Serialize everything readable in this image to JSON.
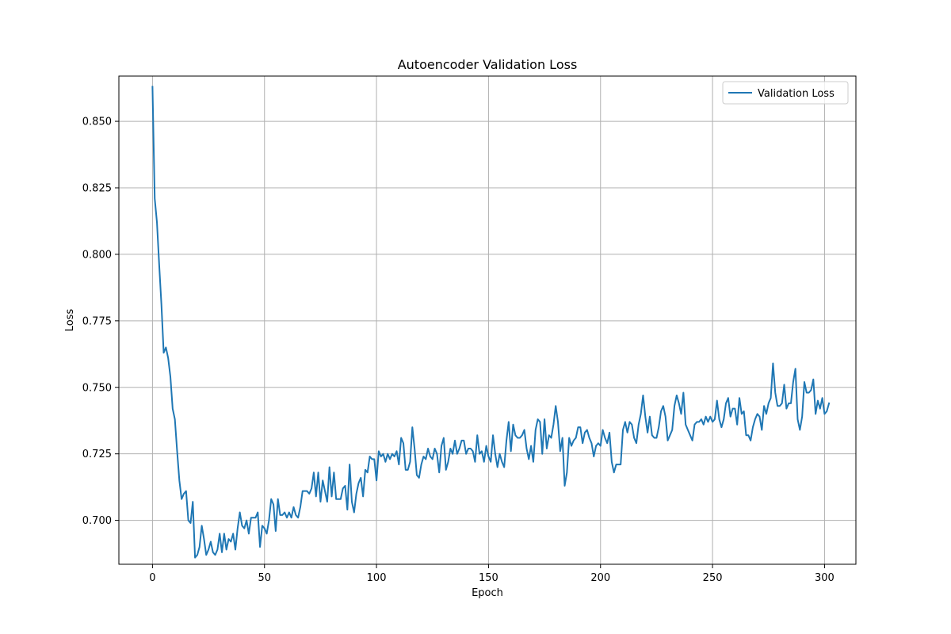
{
  "chart_data": {
    "type": "line",
    "title": "Autoencoder Validation Loss",
    "xlabel": "Epoch",
    "ylabel": "Loss",
    "xlim": [
      -15,
      314
    ],
    "ylim": [
      0.6835,
      0.867
    ],
    "x_ticks": [
      0,
      50,
      100,
      150,
      200,
      250,
      300
    ],
    "y_ticks": [
      0.7,
      0.725,
      0.75,
      0.775,
      0.8,
      0.825,
      0.85
    ],
    "y_tick_labels": [
      "0.700",
      "0.725",
      "0.750",
      "0.775",
      "0.800",
      "0.825",
      "0.850"
    ],
    "grid": true,
    "legend_position": "top-right",
    "series": [
      {
        "name": "Validation Loss",
        "color": "#1f77b4",
        "x_start": 0,
        "x_step": 1,
        "values": [
          0.863,
          0.821,
          0.812,
          0.796,
          0.781,
          0.763,
          0.765,
          0.761,
          0.754,
          0.742,
          0.738,
          0.726,
          0.715,
          0.708,
          0.71,
          0.711,
          0.7,
          0.699,
          0.707,
          0.686,
          0.687,
          0.69,
          0.698,
          0.693,
          0.687,
          0.689,
          0.692,
          0.688,
          0.687,
          0.689,
          0.695,
          0.688,
          0.695,
          0.689,
          0.693,
          0.692,
          0.695,
          0.689,
          0.697,
          0.703,
          0.698,
          0.697,
          0.7,
          0.695,
          0.701,
          0.701,
          0.701,
          0.703,
          0.69,
          0.698,
          0.697,
          0.695,
          0.7,
          0.708,
          0.706,
          0.696,
          0.708,
          0.702,
          0.702,
          0.703,
          0.701,
          0.703,
          0.701,
          0.705,
          0.702,
          0.701,
          0.705,
          0.711,
          0.711,
          0.711,
          0.71,
          0.712,
          0.718,
          0.709,
          0.718,
          0.707,
          0.715,
          0.711,
          0.707,
          0.72,
          0.709,
          0.718,
          0.708,
          0.708,
          0.708,
          0.712,
          0.713,
          0.704,
          0.721,
          0.707,
          0.703,
          0.71,
          0.714,
          0.716,
          0.709,
          0.719,
          0.718,
          0.724,
          0.723,
          0.723,
          0.715,
          0.726,
          0.724,
          0.725,
          0.722,
          0.725,
          0.723,
          0.725,
          0.724,
          0.726,
          0.721,
          0.731,
          0.729,
          0.719,
          0.719,
          0.722,
          0.735,
          0.727,
          0.717,
          0.716,
          0.721,
          0.724,
          0.723,
          0.727,
          0.724,
          0.723,
          0.727,
          0.725,
          0.718,
          0.728,
          0.731,
          0.719,
          0.722,
          0.727,
          0.725,
          0.73,
          0.725,
          0.727,
          0.73,
          0.73,
          0.725,
          0.727,
          0.727,
          0.726,
          0.722,
          0.732,
          0.725,
          0.726,
          0.722,
          0.728,
          0.724,
          0.722,
          0.732,
          0.725,
          0.72,
          0.725,
          0.722,
          0.72,
          0.73,
          0.737,
          0.726,
          0.736,
          0.732,
          0.731,
          0.731,
          0.732,
          0.734,
          0.727,
          0.723,
          0.728,
          0.722,
          0.734,
          0.738,
          0.737,
          0.725,
          0.738,
          0.727,
          0.732,
          0.731,
          0.736,
          0.743,
          0.737,
          0.726,
          0.731,
          0.713,
          0.718,
          0.731,
          0.728,
          0.73,
          0.731,
          0.735,
          0.735,
          0.729,
          0.733,
          0.734,
          0.731,
          0.729,
          0.724,
          0.728,
          0.729,
          0.728,
          0.734,
          0.731,
          0.729,
          0.733,
          0.722,
          0.718,
          0.721,
          0.721,
          0.721,
          0.734,
          0.737,
          0.733,
          0.737,
          0.736,
          0.731,
          0.729,
          0.736,
          0.74,
          0.747,
          0.739,
          0.733,
          0.739,
          0.732,
          0.731,
          0.731,
          0.735,
          0.741,
          0.743,
          0.739,
          0.73,
          0.732,
          0.734,
          0.743,
          0.747,
          0.744,
          0.74,
          0.748,
          0.736,
          0.734,
          0.732,
          0.73,
          0.736,
          0.737,
          0.737,
          0.738,
          0.736,
          0.739,
          0.737,
          0.739,
          0.737,
          0.738,
          0.745,
          0.738,
          0.735,
          0.738,
          0.744,
          0.746,
          0.739,
          0.742,
          0.742,
          0.736,
          0.746,
          0.74,
          0.741,
          0.732,
          0.732,
          0.73,
          0.735,
          0.738,
          0.74,
          0.739,
          0.734,
          0.743,
          0.74,
          0.744,
          0.746,
          0.759,
          0.748,
          0.743,
          0.743,
          0.744,
          0.751,
          0.742,
          0.744,
          0.744,
          0.752,
          0.757,
          0.738,
          0.734,
          0.739,
          0.752,
          0.748,
          0.748,
          0.749,
          0.753,
          0.74,
          0.745,
          0.742,
          0.746,
          0.74,
          0.741,
          0.744
        ]
      }
    ]
  }
}
